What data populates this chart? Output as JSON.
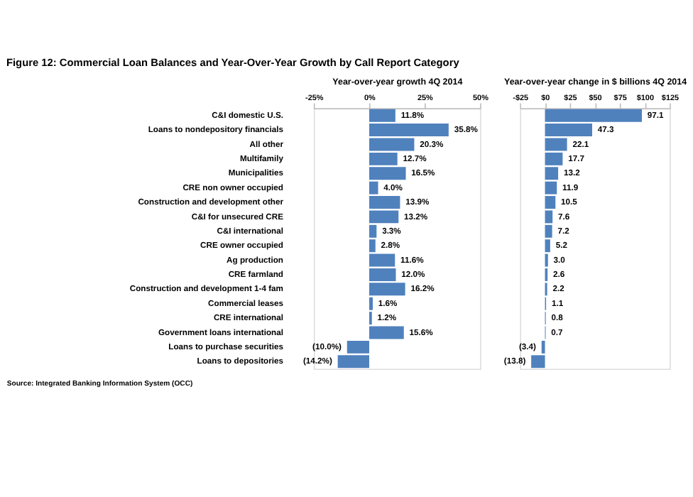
{
  "chart_data": [
    {
      "type": "bar",
      "orientation": "horizontal",
      "title": "Figure 12: Commercial Loan Balances and Year-Over-Year Growth by Call Report Category",
      "xlabel": "Year-over-year growth 4Q 2014",
      "annotations": [
        "Source: Integrated Banking Information System (OCC)"
      ],
      "categories": [
        "C&I domestic U.S.",
        "Loans to nondepository financials",
        "All other",
        "Multifamily",
        "Municipalities",
        "CRE non owner occupied",
        "Construction and development other",
        "C&I for unsecured CRE",
        "C&I international",
        "CRE owner occupied",
        "Ag production",
        "CRE farmland",
        "Construction and development 1-4 fam",
        "Commercial leases",
        "CRE international",
        "Government loans international",
        "Loans to purchase securities",
        "Loans to depositories"
      ],
      "values": [
        11.8,
        35.8,
        20.3,
        12.7,
        16.5,
        4.0,
        13.9,
        13.2,
        3.3,
        2.8,
        11.6,
        12.0,
        16.2,
        1.6,
        1.2,
        15.6,
        -10.0,
        -14.2
      ],
      "value_labels": [
        "11.8%",
        "35.8%",
        "20.3%",
        "12.7%",
        "16.5%",
        "4.0%",
        "13.9%",
        "13.2%",
        "3.3%",
        "2.8%",
        "11.6%",
        "12.0%",
        "16.2%",
        "1.6%",
        "1.2%",
        "15.6%",
        "(10.0%)",
        "(14.2%)"
      ],
      "color": "#4f81bd",
      "xlim": [
        -25,
        50
      ],
      "xticks": [
        {
          "value": -25,
          "label": "-25%"
        },
        {
          "value": 0,
          "label": "0%"
        },
        {
          "value": 25,
          "label": "25%"
        },
        {
          "value": 50,
          "label": "50%"
        }
      ],
      "grid": false
    },
    {
      "type": "bar",
      "orientation": "horizontal",
      "xlabel": "Year-over-year change in $ billions 4Q 2014",
      "tick_labels": "x",
      "categories": [
        null,
        null,
        null,
        null,
        null,
        null,
        null,
        null,
        null,
        null,
        null,
        null,
        null,
        null,
        null,
        null,
        null,
        null
      ],
      "values": [
        97.1,
        47.3,
        22.1,
        17.7,
        13.2,
        11.9,
        10.5,
        7.6,
        7.2,
        5.2,
        3.0,
        2.6,
        2.2,
        1.1,
        0.8,
        0.7,
        -3.4,
        -13.8
      ],
      "value_labels": [
        "97.1",
        "47.3",
        "22.1",
        "17.7",
        "13.2",
        "11.9",
        "10.5",
        "7.6",
        "7.2",
        "5.2",
        "3.0",
        "2.6",
        "2.2",
        "1.1",
        "0.8",
        "0.7",
        "(3.4)",
        "(13.8)"
      ],
      "color": "#4f81bd",
      "xlim": [
        -25,
        125
      ],
      "xticks": [
        {
          "value": -25,
          "label": "-$25"
        },
        {
          "value": 0,
          "label": "$0"
        },
        {
          "value": 25,
          "label": "$25"
        },
        {
          "value": 50,
          "label": "$50"
        },
        {
          "value": 75,
          "label": "$75"
        },
        {
          "value": 100,
          "label": "$100"
        },
        {
          "value": 125,
          "label": "$125"
        }
      ],
      "grid": false
    }
  ]
}
